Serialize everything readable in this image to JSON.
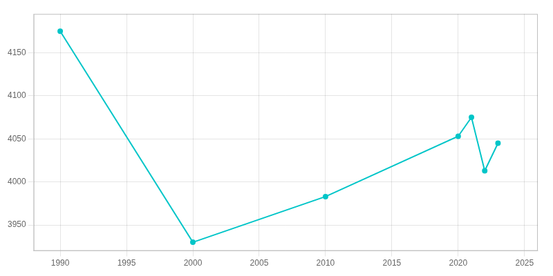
{
  "chart_data": {
    "type": "line",
    "x": [
      1990,
      2000,
      2010,
      2020,
      2021,
      2022,
      2023
    ],
    "values": [
      4175,
      3930,
      3983,
      4053,
      4075,
      4013,
      4045
    ],
    "color": "#00C5C8",
    "marker": "circle",
    "xlim": [
      1988,
      2026
    ],
    "ylim": [
      3920,
      4195
    ],
    "xticks": [
      1990,
      1995,
      2000,
      2005,
      2010,
      2015,
      2020,
      2025
    ],
    "yticks": [
      3950,
      4000,
      4050,
      4100,
      4150
    ],
    "grid": true
  }
}
